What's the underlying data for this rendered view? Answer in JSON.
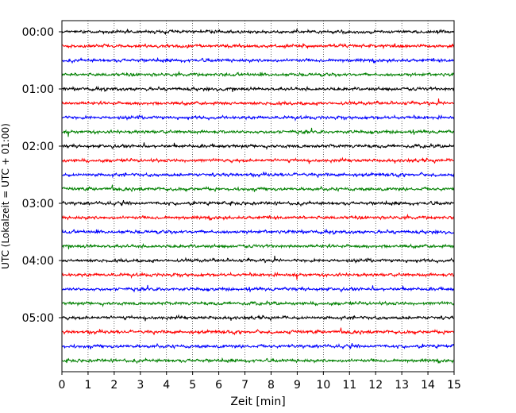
{
  "chart_data": {
    "type": "line",
    "title": "",
    "xlabel": "Zeit  [min]",
    "ylabel": "UTC (Lokalzeit = UTC + 01:00)",
    "xlim": [
      0,
      15
    ],
    "x_ticks": [
      "0",
      "1",
      "2",
      "3",
      "4",
      "5",
      "6",
      "7",
      "8",
      "9",
      "10",
      "11",
      "12",
      "13",
      "14",
      "15"
    ],
    "y_ticks": [
      "00:00",
      "01:00",
      "02:00",
      "03:00",
      "04:00",
      "05:00"
    ],
    "grid": "vertical dotted",
    "trace_interval_minutes": 15,
    "traces": [
      {
        "start": "00:00",
        "color": "#000000"
      },
      {
        "start": "00:15",
        "color": "#ff0000"
      },
      {
        "start": "00:30",
        "color": "#0000ff"
      },
      {
        "start": "00:45",
        "color": "#008000"
      },
      {
        "start": "01:00",
        "color": "#000000"
      },
      {
        "start": "01:15",
        "color": "#ff0000"
      },
      {
        "start": "01:30",
        "color": "#0000ff"
      },
      {
        "start": "01:45",
        "color": "#008000"
      },
      {
        "start": "02:00",
        "color": "#000000"
      },
      {
        "start": "02:15",
        "color": "#ff0000"
      },
      {
        "start": "02:30",
        "color": "#0000ff"
      },
      {
        "start": "02:45",
        "color": "#008000"
      },
      {
        "start": "03:00",
        "color": "#000000"
      },
      {
        "start": "03:15",
        "color": "#ff0000"
      },
      {
        "start": "03:30",
        "color": "#0000ff"
      },
      {
        "start": "03:45",
        "color": "#008000"
      },
      {
        "start": "04:00",
        "color": "#000000"
      },
      {
        "start": "04:15",
        "color": "#ff0000"
      },
      {
        "start": "04:30",
        "color": "#0000ff"
      },
      {
        "start": "04:45",
        "color": "#008000"
      },
      {
        "start": "05:00",
        "color": "#000000"
      },
      {
        "start": "05:15",
        "color": "#ff0000"
      },
      {
        "start": "05:30",
        "color": "#0000ff"
      },
      {
        "start": "05:45",
        "color": "#008000"
      }
    ]
  }
}
